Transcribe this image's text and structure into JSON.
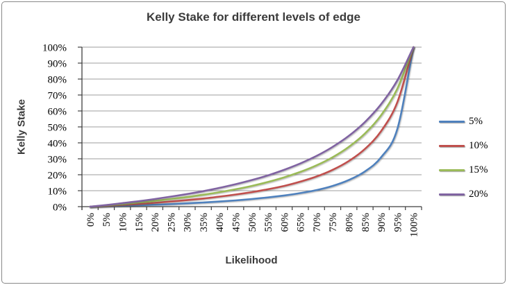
{
  "window": {
    "background": "#ffffff",
    "frame_border_color": "#878787"
  },
  "chart_data": {
    "type": "line",
    "title": "Kelly Stake for different levels of edge",
    "xlabel": "Likelihood",
    "ylabel": "Kelly Stake",
    "x_tick_labels": [
      "0%",
      "5%",
      "10%",
      "15%",
      "20%",
      "25%",
      "30%",
      "35%",
      "40%",
      "45%",
      "50%",
      "55%",
      "60%",
      "65%",
      "70%",
      "75%",
      "80%",
      "85%",
      "90%",
      "95%",
      "100%"
    ],
    "y_tick_labels": [
      "0%",
      "10%",
      "20%",
      "30%",
      "40%",
      "50%",
      "60%",
      "70%",
      "80%",
      "90%",
      "100%"
    ],
    "ylim": [
      0,
      100
    ],
    "grid": "horizontal",
    "legend_position": "right-outside",
    "series": [
      {
        "name": "5%",
        "color": "#4F81BD",
        "values": [
          0,
          0.3,
          0.6,
          0.9,
          1.2,
          1.6,
          2.1,
          2.6,
          3.2,
          3.9,
          4.8,
          5.8,
          7.0,
          8.5,
          10.4,
          13.0,
          16.7,
          22.1,
          31.0,
          48.7,
          100
        ]
      },
      {
        "name": "10%",
        "color": "#C0504D",
        "values": [
          0,
          0.5,
          1.1,
          1.7,
          2.4,
          3.2,
          4.1,
          5.1,
          6.3,
          7.6,
          9.1,
          10.9,
          13.0,
          15.7,
          18.9,
          23.1,
          28.6,
          36.2,
          47.4,
          65.5,
          100
        ]
      },
      {
        "name": "15%",
        "color": "#9BBB59",
        "values": [
          0,
          0.8,
          1.6,
          2.6,
          3.6,
          4.8,
          6.0,
          7.5,
          9.1,
          10.9,
          13.0,
          15.5,
          18.4,
          21.8,
          25.9,
          31.0,
          37.5,
          45.9,
          57.4,
          74.0,
          100
        ]
      },
      {
        "name": "20%",
        "color": "#8064A2",
        "values": [
          0,
          1.0,
          2.2,
          3.4,
          4.8,
          6.3,
          7.9,
          9.7,
          11.8,
          14.1,
          16.7,
          19.6,
          23.1,
          27.1,
          31.8,
          37.5,
          44.4,
          53.1,
          64.3,
          79.2,
          100
        ]
      }
    ]
  }
}
